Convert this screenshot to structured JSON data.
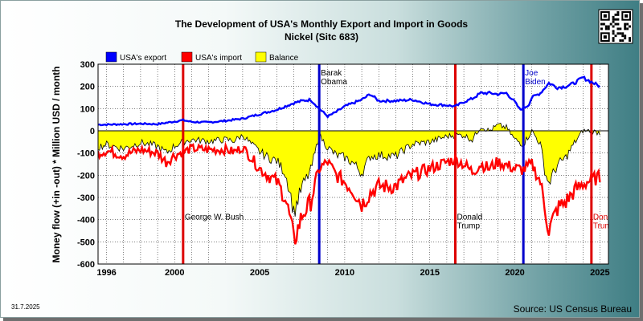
{
  "title_line1": "The Development of USA's Monthly Export and Import in Goods",
  "title_line2": "Nickel (Sitc 683)",
  "date_stamp": "31.7.2025",
  "source": "Source: US Census Bureau",
  "qr_icon": "qr-code-icon",
  "chart_data": {
    "type": "line",
    "title": "The Development of USA's Monthly Export and Import in Goods Nickel (Sitc 683)",
    "ylabel": "Money flow (+in -out) * Million USD / month",
    "xlabel": "",
    "xlim": [
      1995.5,
      2025.5
    ],
    "ylim": [
      -600,
      300
    ],
    "x_ticks": [
      1996,
      2000,
      2005,
      2010,
      2015,
      2020,
      2025
    ],
    "y_ticks": [
      -600,
      -500,
      -400,
      -300,
      -200,
      -100,
      0,
      100,
      200,
      300
    ],
    "grid": true,
    "legend_position": "top-left",
    "colors": {
      "export": "#0000ff",
      "import": "#ff0000",
      "balance_fill": "#ffff00",
      "balance_line": "#000000",
      "marker_blue": "#0000cc",
      "marker_red": "#dd0000"
    },
    "series": [
      {
        "name": "USA's export",
        "color": "#0000ff",
        "x": [
          1995.5,
          1996,
          1997,
          1998,
          1999,
          2000,
          2000.5,
          2001,
          2002,
          2003,
          2004,
          2005,
          2006,
          2006.5,
          2007,
          2007.5,
          2008,
          2008.5,
          2009,
          2009.5,
          2010,
          2010.5,
          2011,
          2011.5,
          2012,
          2013,
          2014,
          2015,
          2016,
          2016.5,
          2017,
          2017.5,
          2018,
          2018.5,
          2019,
          2019.5,
          2020,
          2020.3,
          2020.8,
          2021,
          2021.5,
          2022,
          2022.5,
          2023,
          2023.5,
          2024,
          2024.5,
          2025
        ],
        "values": [
          28,
          28,
          30,
          32,
          30,
          42,
          48,
          40,
          38,
          45,
          55,
          75,
          95,
          110,
          125,
          135,
          140,
          100,
          65,
          85,
          110,
          125,
          140,
          165,
          135,
          135,
          140,
          120,
          115,
          110,
          130,
          145,
          170,
          170,
          165,
          170,
          130,
          95,
          115,
          150,
          170,
          215,
          195,
          200,
          215,
          240,
          220,
          200
        ]
      },
      {
        "name": "USA's import",
        "color": "#ff0000",
        "x": [
          1995.5,
          1996,
          1997,
          1998,
          1999,
          1999.5,
          2000,
          2000.5,
          2001,
          2002,
          2003,
          2003.5,
          2004,
          2004.5,
          2005,
          2005.5,
          2006,
          2006.5,
          2006.8,
          2007,
          2007.5,
          2008,
          2008.5,
          2009,
          2009.5,
          2010,
          2010.5,
          2011,
          2011.5,
          2012,
          2013,
          2013.5,
          2014,
          2015,
          2016,
          2016.5,
          2017,
          2017.5,
          2018,
          2018.5,
          2019,
          2019.5,
          2020,
          2020.5,
          2021,
          2021.5,
          2021.8,
          2022,
          2022.5,
          2023,
          2023.5,
          2024,
          2024.5,
          2025
        ],
        "values": [
          -100,
          -90,
          -110,
          -85,
          -100,
          -140,
          -110,
          -95,
          -80,
          -85,
          -85,
          -95,
          -75,
          -120,
          -170,
          -200,
          -230,
          -300,
          -400,
          -500,
          -380,
          -320,
          -170,
          -140,
          -200,
          -230,
          -270,
          -330,
          -280,
          -250,
          -250,
          -220,
          -200,
          -170,
          -140,
          -130,
          -150,
          -185,
          -150,
          -170,
          -140,
          -155,
          -170,
          -175,
          -150,
          -230,
          -360,
          -450,
          -350,
          -320,
          -270,
          -240,
          -220,
          -210
        ]
      },
      {
        "name": "Balance",
        "color": "#ffff00",
        "x": [
          1995.5,
          1996,
          1997,
          1998,
          1999,
          1999.5,
          2000,
          2000.5,
          2001,
          2002,
          2003,
          2003.5,
          2004,
          2004.5,
          2005,
          2005.5,
          2006,
          2006.5,
          2006.8,
          2007,
          2007.5,
          2008,
          2008.5,
          2009,
          2009.5,
          2010,
          2010.5,
          2011,
          2011.5,
          2012,
          2013,
          2013.5,
          2014,
          2015,
          2016,
          2016.5,
          2017,
          2017.5,
          2018,
          2018.5,
          2019,
          2019.5,
          2020,
          2020.5,
          2021,
          2021.5,
          2021.8,
          2022,
          2022.5,
          2023,
          2023.5,
          2024,
          2024.5,
          2025
        ],
        "values": [
          -72,
          -62,
          -80,
          -53,
          -70,
          -100,
          -68,
          -48,
          -40,
          -47,
          -40,
          -45,
          -20,
          -60,
          -95,
          -120,
          -135,
          -190,
          -280,
          -370,
          -250,
          -180,
          -20,
          -75,
          -110,
          -120,
          -145,
          -190,
          -115,
          -110,
          -115,
          -85,
          -60,
          -50,
          -25,
          -20,
          -20,
          -40,
          20,
          0,
          25,
          15,
          -40,
          -60,
          0,
          -60,
          -195,
          -235,
          -155,
          -120,
          -55,
          0,
          0,
          -10
        ]
      }
    ],
    "annotations": [
      {
        "x": 2000.5,
        "label": "George W. Bush",
        "color": "#dd0000",
        "text_color": "#000000",
        "text_y": -400
      },
      {
        "x": 2008.5,
        "label": "Barak Obama",
        "color": "#0000cc",
        "text_color": "#000000",
        "text_y": 250
      },
      {
        "x": 2016.5,
        "label": "Donald Trump",
        "color": "#dd0000",
        "text_color": "#000000",
        "text_y": -400
      },
      {
        "x": 2020.5,
        "label": "Joe Biden",
        "color": "#0000cc",
        "text_color": "#0000cc",
        "text_y": 250
      },
      {
        "x": 2024.5,
        "label": "Donald Trump",
        "color": "#dd0000",
        "text_color": "#dd0000",
        "text_y": -400
      }
    ]
  }
}
